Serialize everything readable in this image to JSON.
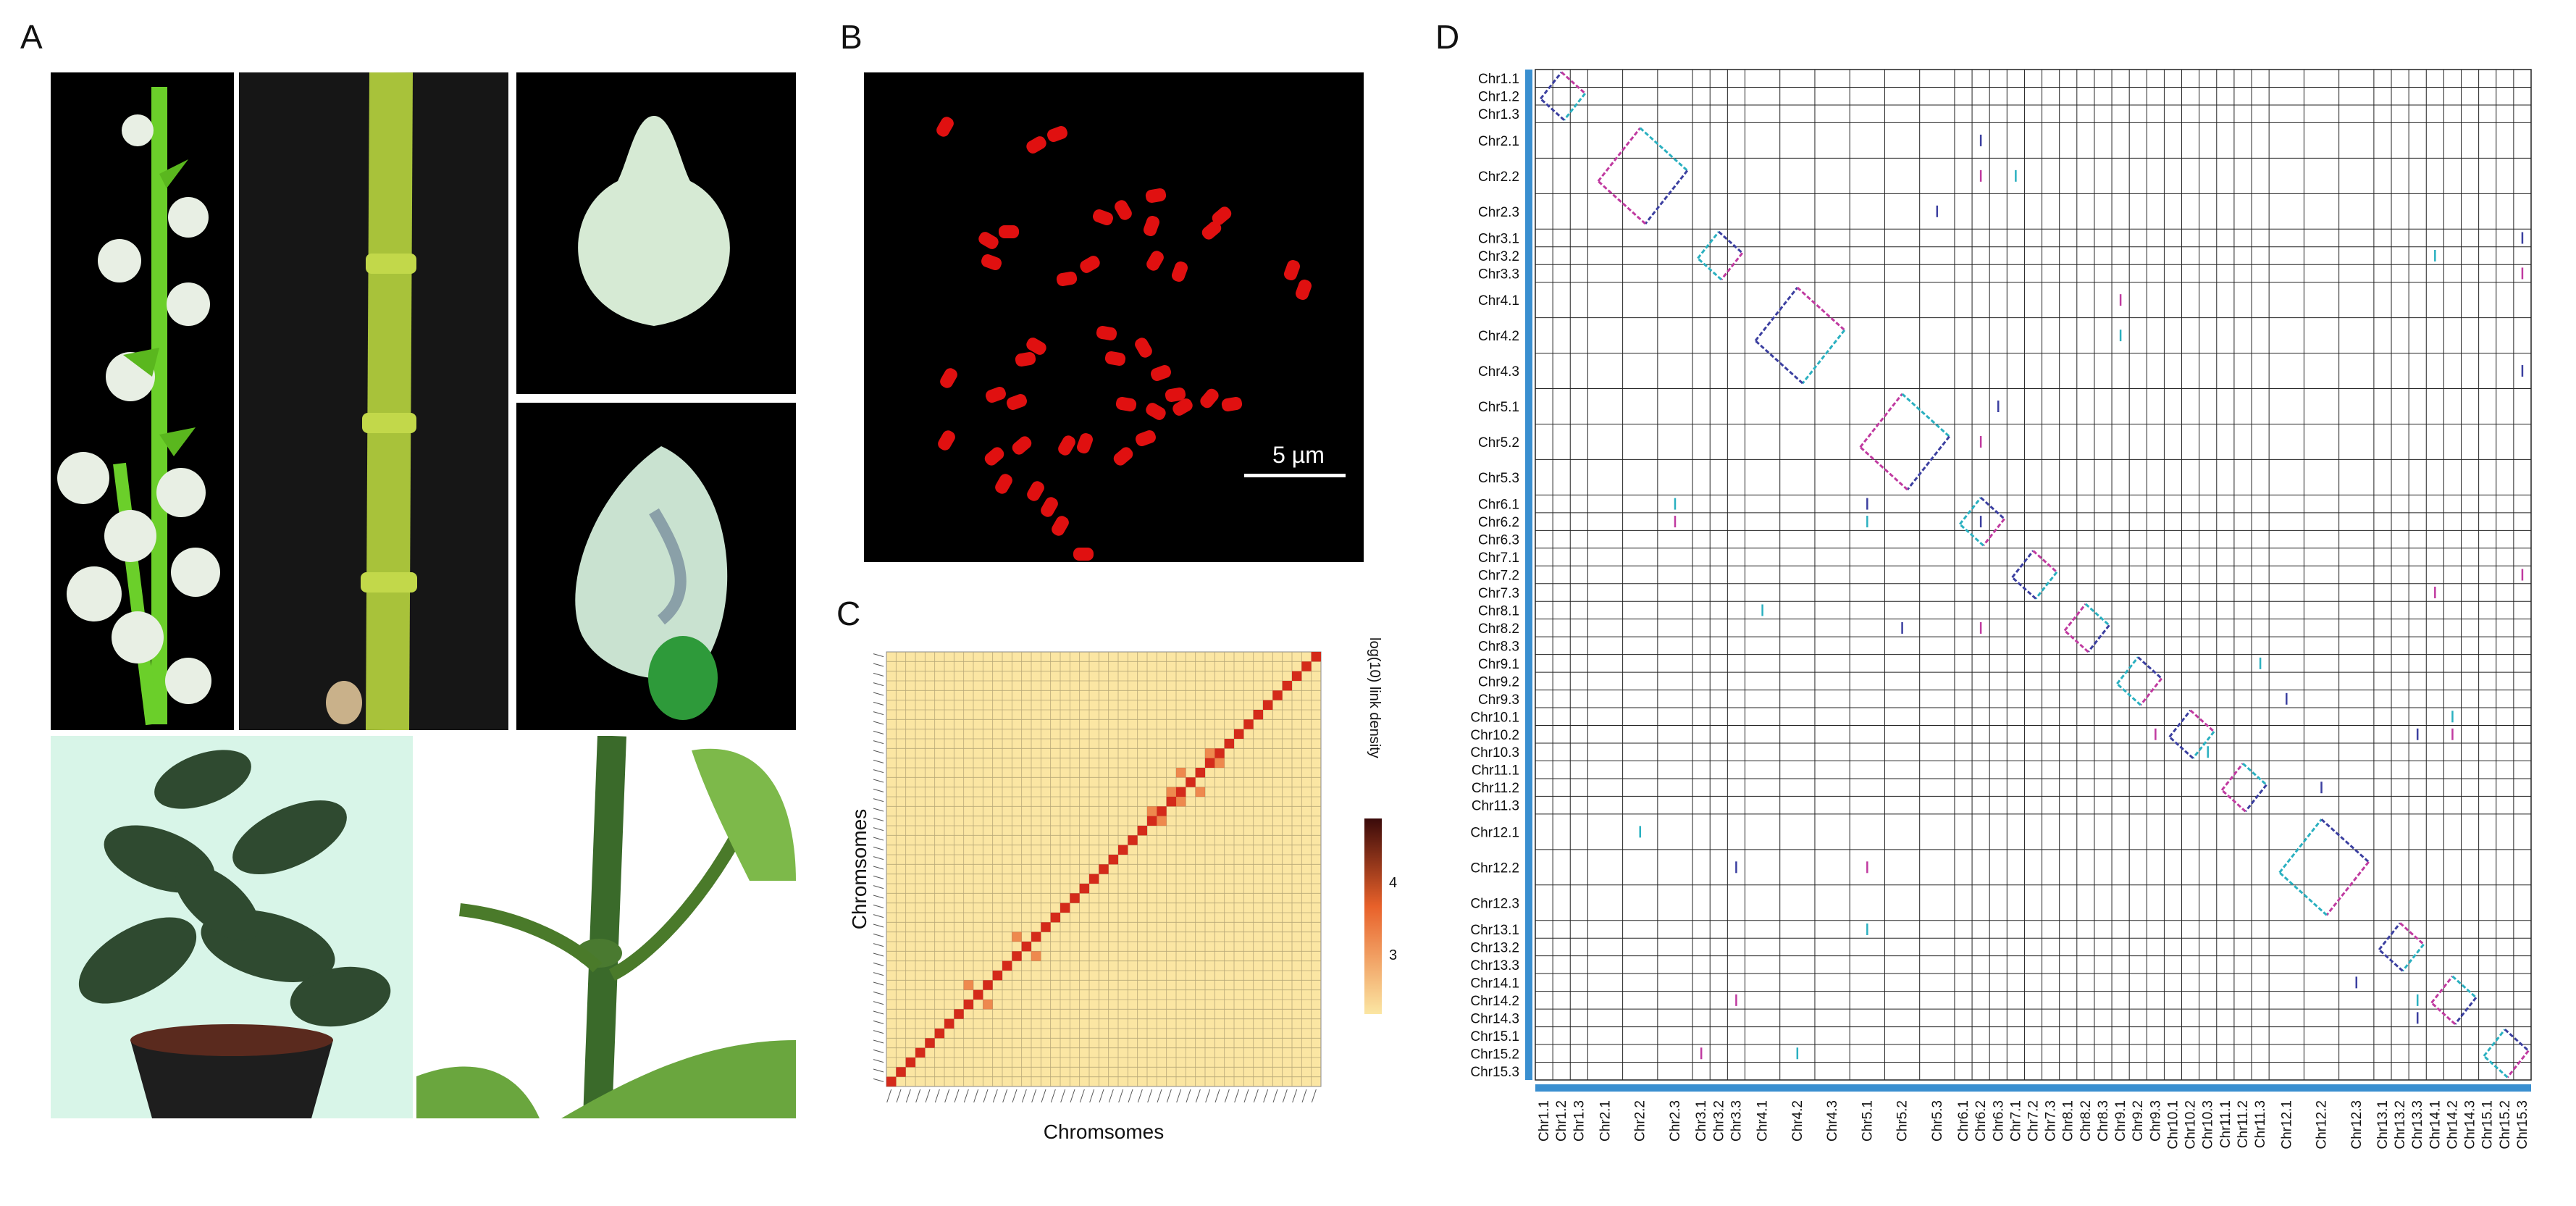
{
  "figure": {
    "panel_labels": {
      "a": "A",
      "b": "B",
      "c": "C",
      "d": "D"
    }
  },
  "panel_a": {
    "photos": [
      {
        "subject": "flower-spike-with-buds",
        "background": "#000000"
      },
      {
        "subject": "green-stem-closeup",
        "background": "#1a1a1a"
      },
      {
        "subject": "white-flower-bud",
        "background": "#000000"
      },
      {
        "subject": "opened-flower-bud",
        "background": "#000000"
      },
      {
        "subject": "potted-plant",
        "background": "#d8f5e8"
      },
      {
        "subject": "stem-and-leaves",
        "background": "#ffffff"
      }
    ]
  },
  "panel_b": {
    "scale_bar_label": "5 µm",
    "background": "#000000",
    "chromosome_color": "#e01010"
  },
  "panel_c": {
    "chart_data": {
      "type": "heatmap",
      "xlabel": "Chromsomes",
      "ylabel": "Chromsomes",
      "colorbar_label": "log(10) link density",
      "colorbar_ticks": [
        "4",
        "3"
      ],
      "colors": {
        "low": "#fbe6a3",
        "mid": "#e8612a",
        "high": "#3a0a0a",
        "diagonal": "#d42a1a"
      }
    }
  },
  "panel_d": {
    "chart_data": {
      "type": "scatter",
      "description_axes": "synteny dot plot",
      "row_labels": [
        "Chr1.1",
        "Chr1.2",
        "Chr1.3",
        "Chr2.1",
        "Chr2.2",
        "Chr2.3",
        "Chr3.1",
        "Chr3.2",
        "Chr3.3",
        "Chr4.1",
        "Chr4.2",
        "Chr4.3",
        "Chr5.1",
        "Chr5.2",
        "Chr5.3",
        "Chr6.1",
        "Chr6.2",
        "Chr6.3",
        "Chr7.1",
        "Chr7.2",
        "Chr7.3",
        "Chr8.1",
        "Chr8.2",
        "Chr8.3",
        "Chr9.1",
        "Chr9.2",
        "Chr9.3",
        "Chr10.1",
        "Chr10.2",
        "Chr10.3",
        "Chr11.1",
        "Chr11.2",
        "Chr11.3",
        "Chr12.1",
        "Chr12.2",
        "Chr12.3",
        "Chr13.1",
        "Chr13.2",
        "Chr13.3",
        "Chr14.1",
        "Chr14.2",
        "Chr14.3",
        "Chr15.1",
        "Chr15.2",
        "Chr15.3"
      ],
      "row_sizes": [
        1,
        1,
        1,
        2,
        2,
        2,
        1,
        1,
        1,
        2,
        2,
        2,
        2,
        2,
        2,
        1,
        1,
        1,
        1,
        1,
        1,
        1,
        1,
        1,
        1,
        1,
        1,
        1,
        1,
        1,
        1,
        1,
        1,
        2,
        2,
        2,
        1,
        1,
        1,
        1,
        1,
        1,
        1,
        1,
        1
      ],
      "col_labels": [
        "Chr1.1",
        "Chr1.2",
        "Chr1.3",
        "Chr2.1",
        "Chr2.2",
        "Chr2.3",
        "Chr3.1",
        "Chr3.2",
        "Chr3.3",
        "Chr4.1",
        "Chr4.2",
        "Chr4.3",
        "Chr5.1",
        "Chr5.2",
        "Chr5.3",
        "Chr6.1",
        "Chr6.2",
        "Chr6.3",
        "Chr7.1",
        "Chr7.2",
        "Chr7.3",
        "Chr8.1",
        "Chr8.2",
        "Chr8.3",
        "Chr9.1",
        "Chr9.2",
        "Chr9.3",
        "Chr10.1",
        "Chr10.2",
        "Chr10.3",
        "Chr11.1",
        "Chr11.2",
        "Chr11.3",
        "Chr12.1",
        "Chr12.2",
        "Chr12.3",
        "Chr13.1",
        "Chr13.2",
        "Chr13.3",
        "Chr14.1",
        "Chr14.2",
        "Chr14.3",
        "Chr15.1",
        "Chr15.2",
        "Chr15.3"
      ],
      "axis_bar_color": "#3a8fd0",
      "point_colors": [
        "#3b3fa0",
        "#c03aa0",
        "#2ab0c0"
      ]
    }
  }
}
